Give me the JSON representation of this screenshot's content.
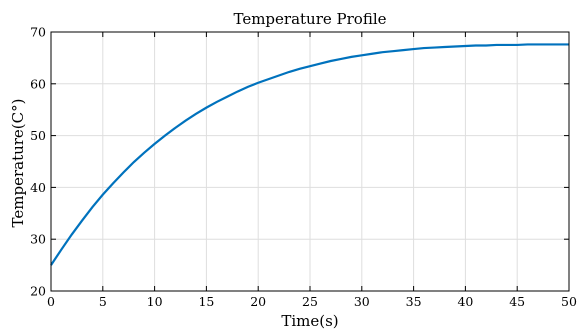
{
  "chart_data": {
    "type": "line",
    "title": "Temperature Profile",
    "xlabel": "Time(s)",
    "ylabel": "Temperature(C°)",
    "xlim": [
      0,
      50
    ],
    "ylim": [
      20,
      70
    ],
    "xticks": [
      0,
      5,
      10,
      15,
      20,
      25,
      30,
      35,
      40,
      45,
      50
    ],
    "yticks": [
      20,
      30,
      40,
      50,
      60,
      70
    ],
    "grid": true,
    "series": [
      {
        "color": "#0072bd",
        "x": [
          0,
          1,
          2,
          3,
          4,
          5,
          6,
          7,
          8,
          9,
          10,
          11,
          12,
          13,
          14,
          15,
          16,
          17,
          18,
          19,
          20,
          21,
          22,
          23,
          24,
          25,
          26,
          27,
          28,
          29,
          30,
          31,
          32,
          33,
          34,
          35,
          36,
          37,
          38,
          39,
          40,
          41,
          42,
          43,
          44,
          45,
          46,
          47,
          48,
          49,
          50
        ],
        "y": [
          25.0,
          28.0,
          30.9,
          33.6,
          36.2,
          38.6,
          40.8,
          42.9,
          44.9,
          46.7,
          48.4,
          50.0,
          51.5,
          52.9,
          54.2,
          55.4,
          56.5,
          57.5,
          58.5,
          59.4,
          60.2,
          60.9,
          61.6,
          62.3,
          62.9,
          63.4,
          63.9,
          64.4,
          64.8,
          65.2,
          65.5,
          65.8,
          66.1,
          66.3,
          66.5,
          66.7,
          66.9,
          67.0,
          67.1,
          67.2,
          67.3,
          67.4,
          67.4,
          67.5,
          67.5,
          67.5,
          67.6,
          67.6,
          67.6,
          67.6,
          67.6
        ]
      }
    ]
  }
}
